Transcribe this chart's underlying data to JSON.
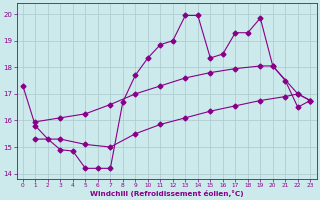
{
  "line_zigzag_x": [
    0,
    1,
    2,
    3,
    4,
    5,
    6,
    7,
    8,
    9,
    10,
    11,
    12,
    13,
    14,
    15,
    16,
    17,
    18,
    19,
    20,
    21,
    22,
    23
  ],
  "line_zigzag_y": [
    17.3,
    15.8,
    15.3,
    14.9,
    14.85,
    14.2,
    14.2,
    14.2,
    16.7,
    17.7,
    18.35,
    18.85,
    19.0,
    19.95,
    19.95,
    18.35,
    18.5,
    19.3,
    19.3,
    19.85,
    18.05,
    17.5,
    16.5,
    16.75
  ],
  "line_mid_x": [
    1,
    3,
    5,
    7,
    9,
    11,
    13,
    15,
    17,
    19,
    20,
    22,
    23
  ],
  "line_mid_y": [
    15.95,
    16.1,
    16.25,
    16.6,
    17.0,
    17.3,
    17.6,
    17.8,
    17.95,
    18.05,
    18.05,
    17.0,
    16.75
  ],
  "line_low_x": [
    1,
    3,
    5,
    7,
    9,
    11,
    13,
    15,
    17,
    19,
    21,
    22,
    23
  ],
  "line_low_y": [
    15.3,
    15.3,
    15.1,
    15.0,
    15.5,
    15.85,
    16.1,
    16.35,
    16.55,
    16.75,
    16.9,
    17.0,
    16.75
  ],
  "bg_color": "#cce9ec",
  "line_color": "#880088",
  "grid_color": "#aac8cc",
  "xlabel": "Windchill (Refroidissement éolien,°C)",
  "xlim": [
    -0.5,
    23.5
  ],
  "ylim": [
    13.8,
    20.4
  ],
  "yticks": [
    14,
    15,
    16,
    17,
    18,
    19,
    20
  ],
  "xticks": [
    0,
    1,
    2,
    3,
    4,
    5,
    6,
    7,
    8,
    9,
    10,
    11,
    12,
    13,
    14,
    15,
    16,
    17,
    18,
    19,
    20,
    21,
    22,
    23
  ]
}
